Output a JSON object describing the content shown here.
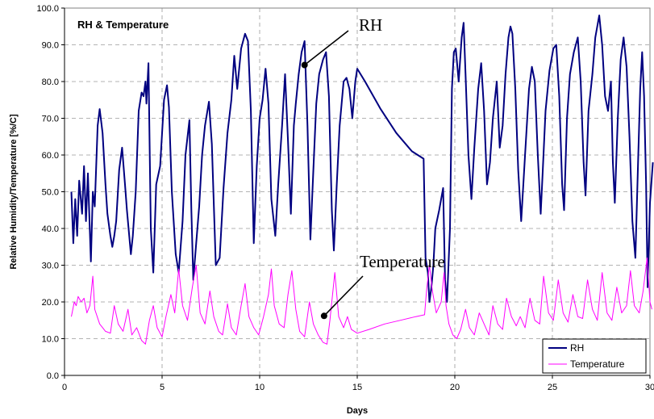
{
  "chart_data": {
    "type": "line",
    "title": "RH & Temperature",
    "xlabel": "Days",
    "ylabel": "Relative Humidity/Temperature [%/C]",
    "xlim": [
      0,
      30
    ],
    "ylim": [
      0,
      100
    ],
    "x_ticks": [
      "0",
      "5",
      "10",
      "15",
      "20",
      "25",
      "30"
    ],
    "y_ticks": [
      "0.0",
      "10.0",
      "20.0",
      "30.0",
      "40.0",
      "50.0",
      "60.0",
      "70.0",
      "80.0",
      "90.0",
      "100.0"
    ],
    "grid": true,
    "legend_position": "bottom-right",
    "annotations": [
      {
        "text": "RH",
        "series": "RH",
        "at": [
          12.3,
          84.5
        ]
      },
      {
        "text": "Temperature",
        "series": "Temperature",
        "at": [
          13.3,
          16.2
        ]
      }
    ],
    "series": [
      {
        "name": "RH",
        "color": "#000080",
        "points": [
          [
            0.35,
            50
          ],
          [
            0.45,
            36
          ],
          [
            0.55,
            48
          ],
          [
            0.65,
            38
          ],
          [
            0.75,
            53
          ],
          [
            0.9,
            44
          ],
          [
            1.0,
            57
          ],
          [
            1.1,
            42
          ],
          [
            1.2,
            55
          ],
          [
            1.35,
            31
          ],
          [
            1.45,
            50
          ],
          [
            1.55,
            46
          ],
          [
            1.7,
            68
          ],
          [
            1.8,
            72.5
          ],
          [
            1.95,
            66
          ],
          [
            2.1,
            52
          ],
          [
            2.2,
            44
          ],
          [
            2.35,
            38
          ],
          [
            2.45,
            35
          ],
          [
            2.55,
            38
          ],
          [
            2.65,
            42
          ],
          [
            2.8,
            56
          ],
          [
            2.95,
            62
          ],
          [
            3.1,
            52
          ],
          [
            3.2,
            45
          ],
          [
            3.4,
            33
          ],
          [
            3.5,
            38
          ],
          [
            3.65,
            50
          ],
          [
            3.8,
            72
          ],
          [
            3.95,
            77
          ],
          [
            4.05,
            76
          ],
          [
            4.15,
            80
          ],
          [
            4.2,
            74
          ],
          [
            4.3,
            85
          ],
          [
            4.42,
            40
          ],
          [
            4.55,
            28
          ],
          [
            4.7,
            52
          ],
          [
            4.9,
            57
          ],
          [
            5.1,
            75
          ],
          [
            5.25,
            79
          ],
          [
            5.35,
            73
          ],
          [
            5.5,
            50
          ],
          [
            5.7,
            33
          ],
          [
            5.85,
            28
          ],
          [
            6.05,
            42
          ],
          [
            6.2,
            60
          ],
          [
            6.4,
            69.5
          ],
          [
            6.5,
            45
          ],
          [
            6.6,
            26
          ],
          [
            6.75,
            36
          ],
          [
            6.9,
            46
          ],
          [
            7.05,
            60
          ],
          [
            7.2,
            68
          ],
          [
            7.4,
            74.5
          ],
          [
            7.55,
            63
          ],
          [
            7.75,
            30
          ],
          [
            7.95,
            32
          ],
          [
            8.15,
            51
          ],
          [
            8.35,
            66
          ],
          [
            8.55,
            75
          ],
          [
            8.7,
            87
          ],
          [
            8.85,
            78
          ],
          [
            9.05,
            89
          ],
          [
            9.25,
            93
          ],
          [
            9.4,
            91
          ],
          [
            9.55,
            72
          ],
          [
            9.7,
            36
          ],
          [
            9.85,
            57
          ],
          [
            10.0,
            70
          ],
          [
            10.15,
            75
          ],
          [
            10.3,
            83.5
          ],
          [
            10.45,
            74
          ],
          [
            10.6,
            48
          ],
          [
            10.8,
            38
          ],
          [
            10.95,
            52
          ],
          [
            11.15,
            68
          ],
          [
            11.3,
            82
          ],
          [
            11.45,
            64
          ],
          [
            11.6,
            44
          ],
          [
            11.75,
            68
          ],
          [
            11.85,
            74
          ],
          [
            12.0,
            82
          ],
          [
            12.15,
            88
          ],
          [
            12.3,
            91
          ],
          [
            12.45,
            68
          ],
          [
            12.6,
            37
          ],
          [
            12.75,
            56
          ],
          [
            12.9,
            74
          ],
          [
            13.05,
            82
          ],
          [
            13.25,
            86
          ],
          [
            13.4,
            88
          ],
          [
            13.55,
            76
          ],
          [
            13.7,
            45
          ],
          [
            13.8,
            34
          ],
          [
            13.95,
            52
          ],
          [
            14.1,
            68
          ],
          [
            14.3,
            80
          ],
          [
            14.45,
            81
          ],
          [
            14.6,
            78
          ],
          [
            14.75,
            70
          ],
          [
            14.9,
            80
          ],
          [
            15.0,
            83.5
          ],
          [
            15.4,
            80
          ],
          [
            16.2,
            72.5
          ],
          [
            17.0,
            66
          ],
          [
            17.8,
            61
          ],
          [
            18.4,
            59
          ],
          [
            18.5,
            32
          ],
          [
            18.62,
            28
          ],
          [
            18.7,
            20
          ],
          [
            18.8,
            24
          ],
          [
            18.9,
            30
          ],
          [
            19.0,
            40
          ],
          [
            19.2,
            45
          ],
          [
            19.4,
            51
          ],
          [
            19.5,
            26
          ],
          [
            19.6,
            20
          ],
          [
            19.75,
            40
          ],
          [
            19.85,
            78
          ],
          [
            19.95,
            88
          ],
          [
            20.05,
            89
          ],
          [
            20.2,
            80
          ],
          [
            20.35,
            92
          ],
          [
            20.45,
            96
          ],
          [
            20.55,
            82
          ],
          [
            20.7,
            60
          ],
          [
            20.85,
            48
          ],
          [
            21.0,
            62
          ],
          [
            21.2,
            78
          ],
          [
            21.35,
            85
          ],
          [
            21.5,
            72
          ],
          [
            21.65,
            52
          ],
          [
            21.8,
            58
          ],
          [
            21.95,
            70
          ],
          [
            22.15,
            80
          ],
          [
            22.3,
            62
          ],
          [
            22.45,
            68
          ],
          [
            22.6,
            82
          ],
          [
            22.75,
            92
          ],
          [
            22.85,
            95
          ],
          [
            22.95,
            93
          ],
          [
            23.1,
            78
          ],
          [
            23.25,
            56
          ],
          [
            23.4,
            42
          ],
          [
            23.6,
            60
          ],
          [
            23.8,
            78
          ],
          [
            23.95,
            84
          ],
          [
            24.1,
            80
          ],
          [
            24.25,
            60
          ],
          [
            24.4,
            44
          ],
          [
            24.5,
            55
          ],
          [
            24.65,
            72
          ],
          [
            24.85,
            83
          ],
          [
            25.05,
            89
          ],
          [
            25.2,
            90
          ],
          [
            25.35,
            76
          ],
          [
            25.5,
            52
          ],
          [
            25.6,
            45
          ],
          [
            25.75,
            70
          ],
          [
            25.9,
            82
          ],
          [
            26.1,
            88
          ],
          [
            26.3,
            92
          ],
          [
            26.45,
            80
          ],
          [
            26.6,
            58
          ],
          [
            26.7,
            49
          ],
          [
            26.85,
            72
          ],
          [
            27.05,
            82
          ],
          [
            27.2,
            92
          ],
          [
            27.4,
            98
          ],
          [
            27.55,
            90
          ],
          [
            27.7,
            76
          ],
          [
            27.85,
            72
          ],
          [
            28.0,
            80
          ],
          [
            28.1,
            58
          ],
          [
            28.2,
            47
          ],
          [
            28.35,
            70
          ],
          [
            28.5,
            86
          ],
          [
            28.65,
            92
          ],
          [
            28.8,
            84
          ],
          [
            28.95,
            65
          ],
          [
            29.1,
            42
          ],
          [
            29.25,
            32
          ],
          [
            29.4,
            60
          ],
          [
            29.5,
            78
          ],
          [
            29.6,
            88
          ],
          [
            29.7,
            76
          ],
          [
            29.8,
            52
          ],
          [
            29.88,
            24
          ],
          [
            30.0,
            47
          ],
          [
            30.15,
            58
          ]
        ]
      },
      {
        "name": "Temperature",
        "color": "#ff00ff",
        "points": [
          [
            0.35,
            16
          ],
          [
            0.5,
            20
          ],
          [
            0.6,
            19
          ],
          [
            0.7,
            21.5
          ],
          [
            0.85,
            20
          ],
          [
            1.0,
            21
          ],
          [
            1.15,
            17
          ],
          [
            1.3,
            19
          ],
          [
            1.45,
            27
          ],
          [
            1.55,
            18
          ],
          [
            1.8,
            14
          ],
          [
            2.1,
            12
          ],
          [
            2.35,
            11.5
          ],
          [
            2.55,
            19
          ],
          [
            2.75,
            14
          ],
          [
            3.0,
            12
          ],
          [
            3.25,
            18
          ],
          [
            3.45,
            11
          ],
          [
            3.7,
            13
          ],
          [
            3.95,
            9.5
          ],
          [
            4.15,
            8.5
          ],
          [
            4.35,
            15
          ],
          [
            4.55,
            19
          ],
          [
            4.75,
            13
          ],
          [
            5.0,
            10.5
          ],
          [
            5.2,
            16
          ],
          [
            5.45,
            22
          ],
          [
            5.65,
            17
          ],
          [
            5.85,
            29
          ],
          [
            6.05,
            19
          ],
          [
            6.3,
            15
          ],
          [
            6.55,
            24
          ],
          [
            6.75,
            30
          ],
          [
            6.95,
            17
          ],
          [
            7.2,
            14
          ],
          [
            7.45,
            23
          ],
          [
            7.65,
            16
          ],
          [
            7.9,
            12
          ],
          [
            8.1,
            11
          ],
          [
            8.35,
            19.5
          ],
          [
            8.55,
            13
          ],
          [
            8.8,
            11
          ],
          [
            9.05,
            19
          ],
          [
            9.25,
            25
          ],
          [
            9.45,
            16
          ],
          [
            9.7,
            13
          ],
          [
            9.95,
            11
          ],
          [
            10.2,
            16
          ],
          [
            10.45,
            22
          ],
          [
            10.6,
            29
          ],
          [
            10.75,
            19
          ],
          [
            11.0,
            14
          ],
          [
            11.25,
            13
          ],
          [
            11.45,
            22
          ],
          [
            11.65,
            28.5
          ],
          [
            11.85,
            18
          ],
          [
            12.05,
            12
          ],
          [
            12.3,
            10.5
          ],
          [
            12.55,
            20
          ],
          [
            12.75,
            14
          ],
          [
            13.0,
            11
          ],
          [
            13.25,
            9
          ],
          [
            13.45,
            8.5
          ],
          [
            13.6,
            15
          ],
          [
            13.85,
            28
          ],
          [
            14.05,
            16
          ],
          [
            14.3,
            13
          ],
          [
            14.5,
            16
          ],
          [
            14.7,
            12.5
          ],
          [
            15.0,
            11.5
          ],
          [
            15.6,
            12.5
          ],
          [
            16.4,
            14
          ],
          [
            17.2,
            15
          ],
          [
            18.0,
            16
          ],
          [
            18.45,
            16.5
          ],
          [
            18.55,
            23
          ],
          [
            18.7,
            30
          ],
          [
            18.85,
            23
          ],
          [
            19.05,
            17
          ],
          [
            19.3,
            20
          ],
          [
            19.45,
            28
          ],
          [
            19.55,
            19
          ],
          [
            19.7,
            14
          ],
          [
            19.9,
            11
          ],
          [
            20.1,
            10
          ],
          [
            20.3,
            12.5
          ],
          [
            20.55,
            18
          ],
          [
            20.75,
            13
          ],
          [
            21.0,
            11
          ],
          [
            21.25,
            17
          ],
          [
            21.5,
            14
          ],
          [
            21.75,
            11
          ],
          [
            21.95,
            19
          ],
          [
            22.2,
            14
          ],
          [
            22.45,
            12.5
          ],
          [
            22.65,
            21
          ],
          [
            22.9,
            16
          ],
          [
            23.15,
            13.5
          ],
          [
            23.35,
            16
          ],
          [
            23.6,
            13
          ],
          [
            23.85,
            21
          ],
          [
            24.1,
            15
          ],
          [
            24.35,
            14
          ],
          [
            24.55,
            27
          ],
          [
            24.8,
            17
          ],
          [
            25.05,
            15
          ],
          [
            25.3,
            26
          ],
          [
            25.55,
            17
          ],
          [
            25.8,
            14.5
          ],
          [
            26.05,
            22
          ],
          [
            26.3,
            16
          ],
          [
            26.55,
            15.5
          ],
          [
            26.8,
            26
          ],
          [
            27.05,
            18
          ],
          [
            27.3,
            15
          ],
          [
            27.55,
            28
          ],
          [
            27.8,
            17
          ],
          [
            28.05,
            15
          ],
          [
            28.3,
            24
          ],
          [
            28.55,
            17
          ],
          [
            28.8,
            19
          ],
          [
            29.0,
            28.5
          ],
          [
            29.2,
            19
          ],
          [
            29.45,
            17
          ],
          [
            29.65,
            23
          ],
          [
            29.85,
            32
          ],
          [
            30.0,
            20
          ],
          [
            30.1,
            18
          ]
        ]
      }
    ]
  }
}
